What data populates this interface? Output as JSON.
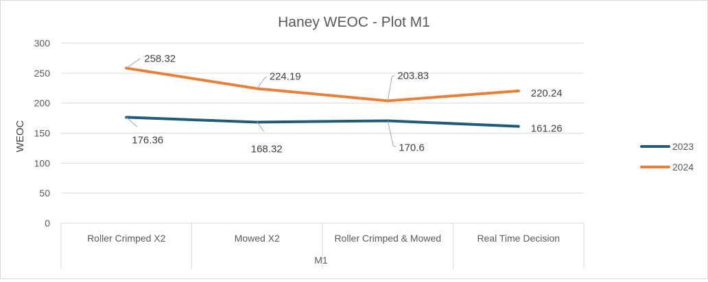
{
  "chart_data": {
    "type": "line",
    "title": "Haney WEOC - Plot M1",
    "xlabel": "M1",
    "ylabel": "WEOC",
    "categories": [
      "Roller Crimped X2",
      "Mowed X2",
      "Roller Crimped & Mowed",
      "Real Time Decision"
    ],
    "ylim": [
      0,
      300
    ],
    "yticks": [
      0,
      50,
      100,
      150,
      200,
      250,
      300
    ],
    "grid": true,
    "legend_position": "right",
    "series": [
      {
        "name": "2023",
        "color": "#1f5c7a",
        "values": [
          176.36,
          168.32,
          170.6,
          161.26
        ],
        "labels": [
          "176.36",
          "168.32",
          "170.6",
          "161.26"
        ]
      },
      {
        "name": "2024",
        "color": "#ed7d31",
        "values": [
          258.32,
          224.19,
          203.83,
          220.24
        ],
        "labels": [
          "258.32",
          "224.19",
          "203.83",
          "220.24"
        ]
      }
    ]
  }
}
